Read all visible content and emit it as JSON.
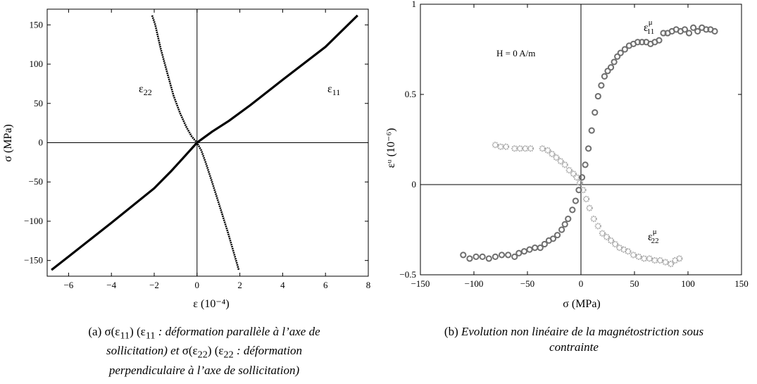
{
  "chart_data": [
    {
      "type": "line",
      "xlabel": "ε (10⁻⁴)",
      "ylabel": "σ (MPa)",
      "xlim": [
        -7,
        8
      ],
      "ylim": [
        -170,
        170
      ],
      "xticks": [
        -6,
        -4,
        -2,
        0,
        2,
        4,
        6,
        8
      ],
      "yticks": [
        -150,
        -100,
        -50,
        0,
        50,
        100,
        150
      ],
      "series": [
        {
          "name": "ε11",
          "points": [
            [
              -6.8,
              -162
            ],
            [
              -6,
              -145
            ],
            [
              -4,
              -102
            ],
            [
              -2,
              -58
            ],
            [
              -1.2,
              -36
            ],
            [
              -0.6,
              -18
            ],
            [
              -0.2,
              -6
            ],
            [
              0,
              0
            ],
            [
              0.3,
              6
            ],
            [
              0.7,
              14
            ],
            [
              1.5,
              28
            ],
            [
              2.5,
              48
            ],
            [
              4,
              80
            ],
            [
              6,
              122
            ],
            [
              7.5,
              162
            ]
          ]
        },
        {
          "name": "ε22",
          "points": [
            [
              -2.1,
              162
            ],
            [
              -1.95,
              150
            ],
            [
              -1.7,
              120
            ],
            [
              -1.4,
              90
            ],
            [
              -1.1,
              60
            ],
            [
              -0.8,
              38
            ],
            [
              -0.5,
              20
            ],
            [
              -0.25,
              8
            ],
            [
              0,
              0
            ],
            [
              0.2,
              -10
            ],
            [
              0.4,
              -25
            ],
            [
              0.7,
              -50
            ],
            [
              1.05,
              -80
            ],
            [
              1.45,
              -115
            ],
            [
              1.95,
              -162
            ]
          ]
        }
      ],
      "labels": {
        "e22": "ε",
        "e22_sub": "22",
        "e11": "ε",
        "e11_sub": "11"
      },
      "caption": {
        "prefix": "(a) ",
        "line1_plain": "σ(ε",
        "line1_sub1": "11",
        "line1_plain2": ") (ε",
        "line1_sub2": "11",
        "line1_italic": " : déformation parallèle à l’axe de",
        "line2_italic_a": "sollicitation) et ",
        "line2_plain": "σ(ε",
        "line2_sub1": "22",
        "line2_plain2": ") (ε",
        "line2_sub2": "22",
        "line2_italic_b": " : déformation",
        "line3_italic": "perpendiculaire à l’axe de sollicitation)"
      }
    },
    {
      "type": "scatter",
      "xlabel": "σ (MPa)",
      "ylabel": "εᵘ (10⁻⁶)",
      "xlim": [
        -150,
        150
      ],
      "ylim": [
        -0.5,
        1
      ],
      "xticks": [
        -150,
        -100,
        -50,
        0,
        50,
        100,
        150
      ],
      "yticks": [
        -0.5,
        0,
        0.5,
        1
      ],
      "ytick_labels": [
        "−0.5",
        "0",
        "0.5",
        "1"
      ],
      "xtick_labels": [
        "−150",
        "−100",
        "−50",
        "0",
        "50",
        "100",
        "150"
      ],
      "annotation": "H = 0 A/m",
      "series": [
        {
          "name": "ε11μ",
          "x": [
            -110,
            -104,
            -98,
            -92,
            -86,
            -80,
            -74,
            -68,
            -62,
            -58,
            -53,
            -48,
            -43,
            -38,
            -34,
            -30,
            -26,
            -22,
            -18,
            -15,
            -12,
            -8,
            -5,
            -2,
            1,
            4,
            7,
            10,
            13,
            16,
            19,
            22,
            25,
            28,
            31,
            34,
            37,
            41,
            45,
            49,
            53,
            57,
            61,
            65,
            69,
            73,
            77,
            81,
            85,
            89,
            93,
            97,
            101,
            105,
            109,
            113,
            117,
            121,
            125
          ],
          "y": [
            -0.39,
            -0.41,
            -0.4,
            -0.4,
            -0.41,
            -0.4,
            -0.39,
            -0.39,
            -0.4,
            -0.38,
            -0.37,
            -0.36,
            -0.35,
            -0.35,
            -0.33,
            -0.31,
            -0.3,
            -0.28,
            -0.25,
            -0.22,
            -0.19,
            -0.14,
            -0.09,
            -0.03,
            0.04,
            0.11,
            0.2,
            0.3,
            0.4,
            0.49,
            0.55,
            0.6,
            0.63,
            0.65,
            0.68,
            0.71,
            0.73,
            0.75,
            0.77,
            0.78,
            0.79,
            0.79,
            0.79,
            0.78,
            0.79,
            0.8,
            0.84,
            0.84,
            0.85,
            0.86,
            0.85,
            0.86,
            0.84,
            0.87,
            0.85,
            0.87,
            0.86,
            0.86,
            0.85
          ]
        },
        {
          "name": "ε22μ",
          "x": [
            -80,
            -75,
            -70,
            -62,
            -57,
            -52,
            -47,
            -36,
            -31,
            -27,
            -23,
            -19,
            -15,
            -11,
            -7,
            -4,
            -1,
            2,
            5,
            8,
            12,
            16,
            20,
            24,
            28,
            32,
            36,
            40,
            44,
            49,
            54,
            59,
            64,
            69,
            74,
            79,
            84,
            88,
            92
          ],
          "y": [
            0.22,
            0.21,
            0.21,
            0.2,
            0.2,
            0.2,
            0.2,
            0.2,
            0.19,
            0.17,
            0.15,
            0.13,
            0.11,
            0.08,
            0.06,
            0.04,
            0.01,
            -0.03,
            -0.08,
            -0.13,
            -0.19,
            -0.23,
            -0.27,
            -0.29,
            -0.31,
            -0.33,
            -0.35,
            -0.36,
            -0.37,
            -0.39,
            -0.4,
            -0.41,
            -0.41,
            -0.42,
            -0.42,
            -0.43,
            -0.44,
            -0.42,
            -0.41
          ]
        }
      ],
      "labels": {
        "e11": "ε",
        "e11_sup": "μ",
        "e11_sub": "11",
        "e22": "ε",
        "e22_sup": "μ",
        "e22_sub": "22"
      },
      "caption": {
        "prefix": "(b) ",
        "line1_italic": "Evolution non linéaire de la magnétostriction sous",
        "line2_italic": "contrainte"
      },
      "colors": {
        "e11": "#6e6e6e",
        "e22": "#a6a6a6"
      }
    }
  ]
}
